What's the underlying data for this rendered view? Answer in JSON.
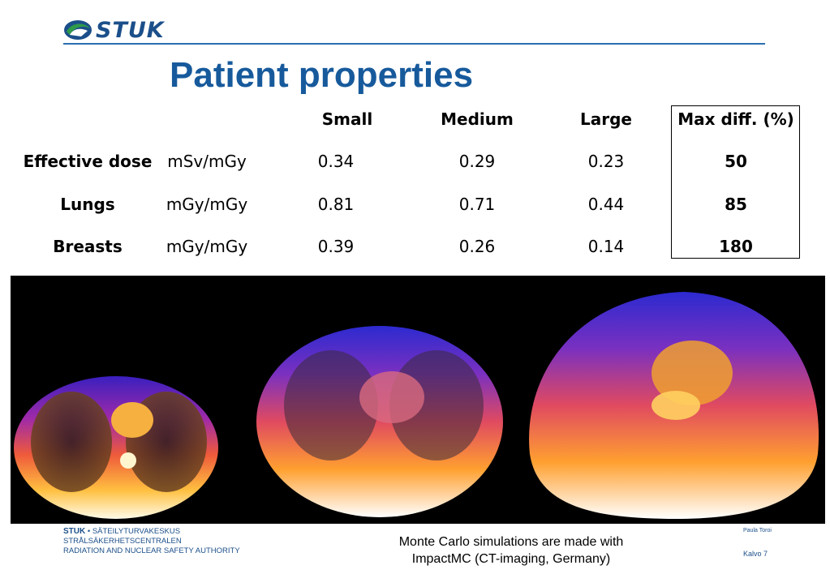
{
  "header": {
    "logo_text": "STUK",
    "title": "Patient properties"
  },
  "table": {
    "columns": [
      "Small",
      "Medium",
      "Large",
      "Max diff. (%)"
    ],
    "rows": [
      {
        "label": "Effective dose",
        "unit": "mSv/mGy",
        "small": "0.34",
        "medium": "0.29",
        "large": "0.23",
        "max_diff": "50"
      },
      {
        "label": "Lungs",
        "unit": "mGy/mGy",
        "small": "0.81",
        "medium": "0.71",
        "large": "0.44",
        "max_diff": "85"
      },
      {
        "label": "Breasts",
        "unit": "mGy/mGy",
        "small": "0.39",
        "medium": "0.26",
        "large": "0.14",
        "max_diff": "180"
      }
    ]
  },
  "images": {
    "description_icon": "ct-dose-scan-image"
  },
  "footer": {
    "org_brand": "STUK",
    "org_line1": " • SÄTEILYTURVAKESKUS",
    "org_line2": "STRÅLSÄKERHETSCENTRALEN",
    "org_line3": "RADIATION AND NUCLEAR SAFETY AUTHORITY",
    "caption_line1": "Monte Carlo simulations are made with",
    "caption_line2": "ImpactMC (CT-imaging, Germany)",
    "author": "Paula Toroi",
    "slide_number": "Kalvo 7"
  },
  "colors": {
    "brand_blue": "#1b4f8a",
    "title_blue": "#175a9c",
    "logo_green": "#2e9a4a"
  }
}
